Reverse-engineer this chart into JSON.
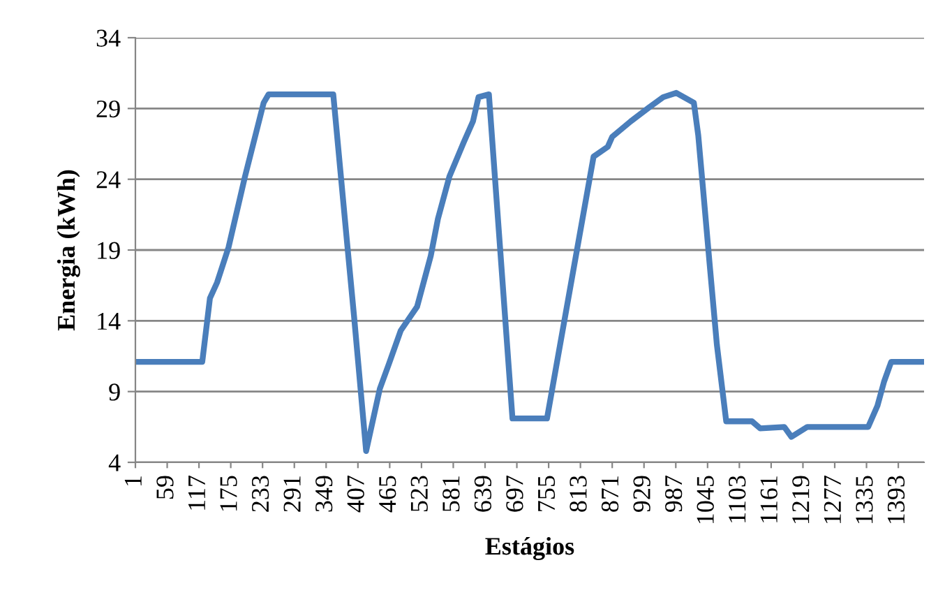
{
  "chart_data": {
    "type": "line",
    "xlabel": "Estágios",
    "ylabel": "Energia (kWh)",
    "xlim": [
      1,
      1440
    ],
    "xticks": [
      1,
      59,
      117,
      175,
      233,
      291,
      349,
      407,
      465,
      523,
      581,
      639,
      697,
      755,
      813,
      871,
      929,
      987,
      1045,
      1103,
      1161,
      1219,
      1277,
      1335,
      1393
    ],
    "ylim": [
      4,
      34
    ],
    "yticks": [
      4,
      9,
      14,
      19,
      24,
      29,
      34
    ],
    "grid": "y",
    "marker": "none",
    "line_style": "solid",
    "series": [
      {
        "color": "#4a7ebb",
        "x": [
          1,
          123,
          137,
          150,
          171,
          201,
          235,
          244,
          362,
          388,
          400,
          422,
          447,
          464,
          485,
          515,
          540,
          553,
          574,
          600,
          617,
          627,
          646,
          689,
          752,
          791,
          837,
          863,
          871,
          905,
          939,
          964,
          988,
          1020,
          1028,
          1037,
          1049,
          1062,
          1079,
          1126,
          1141,
          1185,
          1198,
          1227,
          1338,
          1355,
          1367,
          1380,
          1440
        ],
        "values": [
          11.1,
          11.1,
          15.6,
          16.7,
          19.2,
          24.2,
          29.4,
          30.0,
          30.0,
          19.2,
          14.3,
          4.8,
          9.2,
          11.0,
          13.3,
          15.0,
          18.6,
          21.2,
          24.2,
          26.6,
          28.1,
          29.8,
          30.0,
          7.1,
          7.1,
          15.6,
          25.6,
          26.3,
          27.0,
          28.1,
          29.1,
          29.8,
          30.1,
          29.4,
          27.1,
          23.2,
          17.9,
          12.3,
          6.9,
          6.9,
          6.4,
          6.5,
          5.8,
          6.5,
          6.5,
          8.0,
          9.7,
          11.1,
          11.1
        ]
      }
    ]
  }
}
